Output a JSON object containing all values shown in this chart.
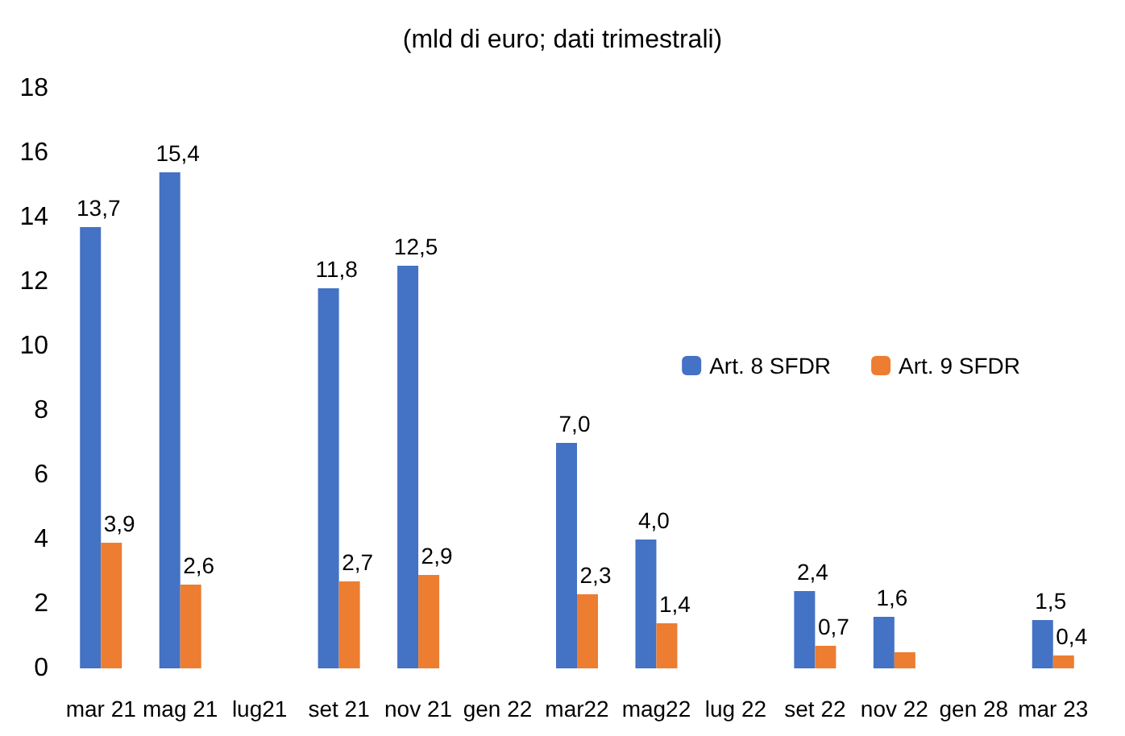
{
  "chart_data": {
    "type": "bar",
    "title": "(mld di euro; dati trimestrali)",
    "categories": [
      "mar 21",
      "mag 21",
      "lug21",
      "set 21",
      "nov 21",
      "gen 22",
      "mar22",
      "mag22",
      "lug 22",
      "set 22",
      "nov 22",
      "gen 28",
      "mar 23"
    ],
    "series": [
      {
        "name": "Art. 8 SFDR",
        "color": "#4472c4",
        "values": [
          13.7,
          15.4,
          null,
          11.8,
          12.5,
          null,
          7.0,
          4.0,
          null,
          2.4,
          1.6,
          null,
          1.5
        ],
        "value_labels": [
          "13,7",
          "15,4",
          null,
          "11,8",
          "12,5",
          null,
          "7,0",
          "4,0",
          null,
          "2,4",
          "1,6",
          null,
          "1,5"
        ]
      },
      {
        "name": "Art. 9 SFDR",
        "color": "#ed7d31",
        "values": [
          3.9,
          2.6,
          null,
          2.7,
          2.9,
          null,
          2.3,
          1.4,
          null,
          0.7,
          0.5,
          null,
          0.4
        ],
        "value_labels": [
          "3,9",
          "2,6",
          null,
          "2,7",
          "2,9",
          null,
          "2,3",
          "1,4",
          null,
          "0,7",
          null,
          null,
          "0,4"
        ]
      }
    ],
    "ylim": [
      0,
      18
    ],
    "yticks": [
      0,
      2,
      4,
      6,
      8,
      10,
      12,
      14,
      16,
      18
    ],
    "grid": false,
    "legend": "right"
  }
}
